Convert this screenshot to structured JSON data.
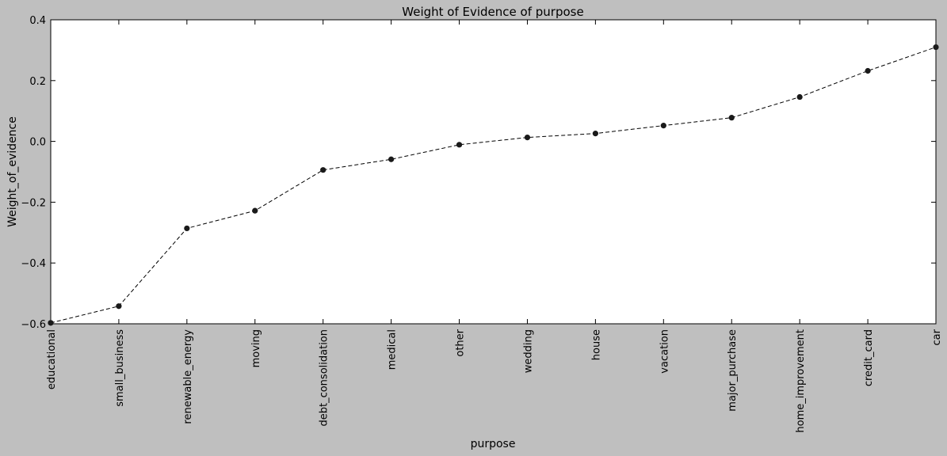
{
  "chart_data": {
    "type": "line",
    "title": "Weight of Evidence of purpose",
    "xlabel": "purpose",
    "ylabel": "Weight_of_evidence",
    "categories": [
      "educational",
      "small_business",
      "renewable_energy",
      "moving",
      "debt_consolidation",
      "medical",
      "other",
      "wedding",
      "house",
      "vacation",
      "major_purchase",
      "home_improvement",
      "credit_card",
      "car"
    ],
    "values": [
      -0.597,
      -0.542,
      -0.286,
      -0.228,
      -0.094,
      -0.059,
      -0.011,
      0.013,
      0.026,
      0.052,
      0.078,
      0.146,
      0.232,
      0.31
    ],
    "ylim": [
      -0.6,
      0.4
    ],
    "yticks": [
      -0.6,
      -0.4,
      -0.2,
      0.0,
      0.2,
      0.4
    ],
    "ytick_labels": [
      "−0.6",
      "−0.4",
      "−0.2",
      "0.0",
      "0.2",
      "0.4"
    ],
    "grid": false,
    "line_style": "dashed",
    "marker": "circle",
    "line_color": "#000000",
    "marker_color": "#1a1a1a",
    "plot_background": "#ffffff",
    "figure_background": "#bfbfbf"
  }
}
